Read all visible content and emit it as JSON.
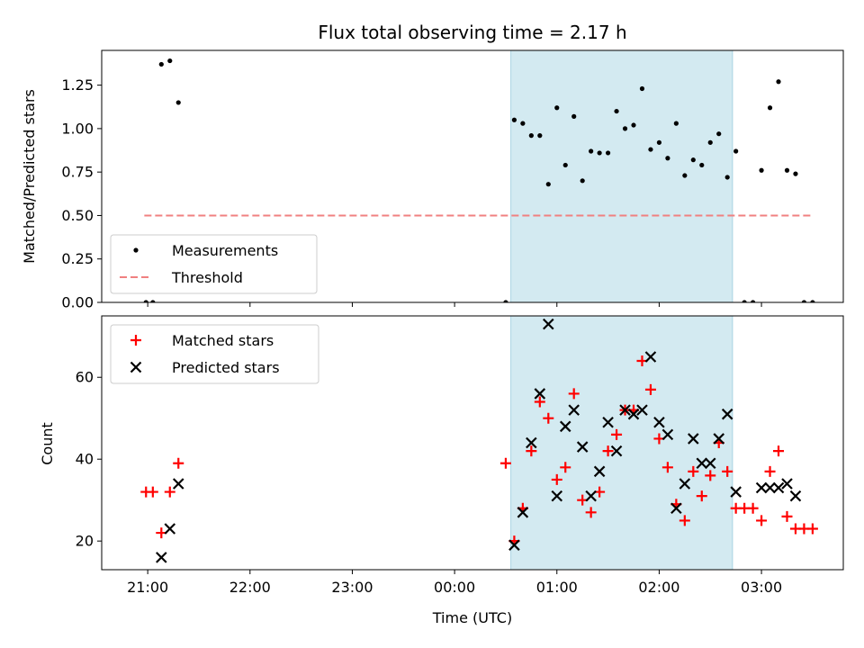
{
  "chart_data": [
    {
      "type": "scatter",
      "title": "Flux total observing time = 2.17 h",
      "xlabel": "",
      "ylabel": "Matched/Predicted stars",
      "ylim": [
        0,
        1.45
      ],
      "xlim": [
        "20:33",
        "03:48"
      ],
      "x_is_time": true,
      "yticks": [
        0,
        0.25,
        0.5,
        0.75,
        1.0,
        1.25
      ],
      "ytick_labels": [
        "0.00",
        "0.25",
        "0.50",
        "0.75",
        "1.00",
        "1.25"
      ],
      "shaded_region": {
        "x": [
          "00:33",
          "02:43"
        ],
        "color": "#d3eaf1"
      },
      "legend_position": "lower-left",
      "series": [
        {
          "name": "Measurements",
          "marker": "dot",
          "color": "#000000",
          "points": [
            [
              "20:59",
              0.0
            ],
            [
              "21:03",
              0.0
            ],
            [
              "21:08",
              1.37
            ],
            [
              "21:13",
              1.39
            ],
            [
              "21:18",
              1.15
            ],
            [
              "00:30",
              0.0
            ],
            [
              "00:35",
              1.05
            ],
            [
              "00:40",
              1.03
            ],
            [
              "00:45",
              0.96
            ],
            [
              "00:50",
              0.96
            ],
            [
              "00:55",
              0.68
            ],
            [
              "01:00",
              1.12
            ],
            [
              "01:05",
              0.79
            ],
            [
              "01:10",
              1.07
            ],
            [
              "01:15",
              0.7
            ],
            [
              "01:20",
              0.87
            ],
            [
              "01:25",
              0.86
            ],
            [
              "01:30",
              0.86
            ],
            [
              "01:35",
              1.1
            ],
            [
              "01:40",
              1.0
            ],
            [
              "01:45",
              1.02
            ],
            [
              "01:50",
              1.23
            ],
            [
              "01:55",
              0.88
            ],
            [
              "02:00",
              0.92
            ],
            [
              "02:05",
              0.83
            ],
            [
              "02:10",
              1.03
            ],
            [
              "02:15",
              0.73
            ],
            [
              "02:20",
              0.82
            ],
            [
              "02:25",
              0.79
            ],
            [
              "02:30",
              0.92
            ],
            [
              "02:35",
              0.97
            ],
            [
              "02:40",
              0.72
            ],
            [
              "02:45",
              0.87
            ],
            [
              "02:50",
              0.0
            ],
            [
              "02:55",
              0.0
            ],
            [
              "03:00",
              0.76
            ],
            [
              "03:05",
              1.12
            ],
            [
              "03:10",
              1.27
            ],
            [
              "03:15",
              0.76
            ],
            [
              "03:20",
              0.74
            ],
            [
              "03:25",
              0.0
            ],
            [
              "03:30",
              0.0
            ]
          ]
        },
        {
          "name": "Threshold",
          "marker": "dashed-line",
          "color": "#f08080",
          "points": [
            [
              "20:58",
              0.5
            ],
            [
              "03:30",
              0.5
            ]
          ]
        }
      ]
    },
    {
      "type": "scatter",
      "title": "",
      "xlabel": "Time (UTC)",
      "ylabel": "Count",
      "ylim": [
        13,
        75
      ],
      "xlim": [
        "20:33",
        "03:48"
      ],
      "x_is_time": true,
      "yticks": [
        20,
        40,
        60
      ],
      "ytick_labels": [
        "20",
        "40",
        "60"
      ],
      "xticks": [
        "21:00",
        "22:00",
        "23:00",
        "00:00",
        "01:00",
        "02:00",
        "03:00"
      ],
      "xtick_labels": [
        "21:00",
        "22:00",
        "23:00",
        "00:00",
        "01:00",
        "02:00",
        "03:00"
      ],
      "shaded_region": {
        "x": [
          "00:33",
          "02:43"
        ],
        "color": "#d3eaf1"
      },
      "legend_position": "upper-left",
      "series": [
        {
          "name": "Matched stars",
          "marker": "plus",
          "color": "#ff0000",
          "points": [
            [
              "20:59",
              32
            ],
            [
              "21:03",
              32
            ],
            [
              "21:08",
              22
            ],
            [
              "21:13",
              32
            ],
            [
              "21:18",
              39
            ],
            [
              "00:30",
              39
            ],
            [
              "00:35",
              20
            ],
            [
              "00:40",
              28
            ],
            [
              "00:45",
              42
            ],
            [
              "00:50",
              54
            ],
            [
              "00:55",
              50
            ],
            [
              "01:00",
              35
            ],
            [
              "01:05",
              38
            ],
            [
              "01:10",
              56
            ],
            [
              "01:15",
              30
            ],
            [
              "01:20",
              27
            ],
            [
              "01:25",
              32
            ],
            [
              "01:30",
              42
            ],
            [
              "01:35",
              46
            ],
            [
              "01:40",
              52
            ],
            [
              "01:45",
              52
            ],
            [
              "01:50",
              64
            ],
            [
              "01:55",
              57
            ],
            [
              "02:00",
              45
            ],
            [
              "02:05",
              38
            ],
            [
              "02:10",
              29
            ],
            [
              "02:15",
              25
            ],
            [
              "02:20",
              37
            ],
            [
              "02:25",
              31
            ],
            [
              "02:30",
              36
            ],
            [
              "02:35",
              44
            ],
            [
              "02:40",
              37
            ],
            [
              "02:45",
              28
            ],
            [
              "02:50",
              28
            ],
            [
              "02:55",
              28
            ],
            [
              "03:00",
              25
            ],
            [
              "03:05",
              37
            ],
            [
              "03:10",
              42
            ],
            [
              "03:15",
              26
            ],
            [
              "03:20",
              23
            ],
            [
              "03:25",
              23
            ],
            [
              "03:30",
              23
            ]
          ]
        },
        {
          "name": "Predicted stars",
          "marker": "x",
          "color": "#000000",
          "points": [
            [
              "21:08",
              16
            ],
            [
              "21:13",
              23
            ],
            [
              "21:18",
              34
            ],
            [
              "00:35",
              19
            ],
            [
              "00:40",
              27
            ],
            [
              "00:45",
              44
            ],
            [
              "00:50",
              56
            ],
            [
              "00:55",
              73
            ],
            [
              "01:00",
              31
            ],
            [
              "01:05",
              48
            ],
            [
              "01:10",
              52
            ],
            [
              "01:15",
              43
            ],
            [
              "01:20",
              31
            ],
            [
              "01:25",
              37
            ],
            [
              "01:30",
              49
            ],
            [
              "01:35",
              42
            ],
            [
              "01:40",
              52
            ],
            [
              "01:45",
              51
            ],
            [
              "01:50",
              52
            ],
            [
              "01:55",
              65
            ],
            [
              "02:00",
              49
            ],
            [
              "02:05",
              46
            ],
            [
              "02:10",
              28
            ],
            [
              "02:15",
              34
            ],
            [
              "02:20",
              45
            ],
            [
              "02:25",
              39
            ],
            [
              "02:30",
              39
            ],
            [
              "02:35",
              45
            ],
            [
              "02:40",
              51
            ],
            [
              "02:45",
              32
            ],
            [
              "03:00",
              33
            ],
            [
              "03:05",
              33
            ],
            [
              "03:10",
              33
            ],
            [
              "03:15",
              34
            ],
            [
              "03:20",
              31
            ]
          ]
        }
      ]
    }
  ]
}
